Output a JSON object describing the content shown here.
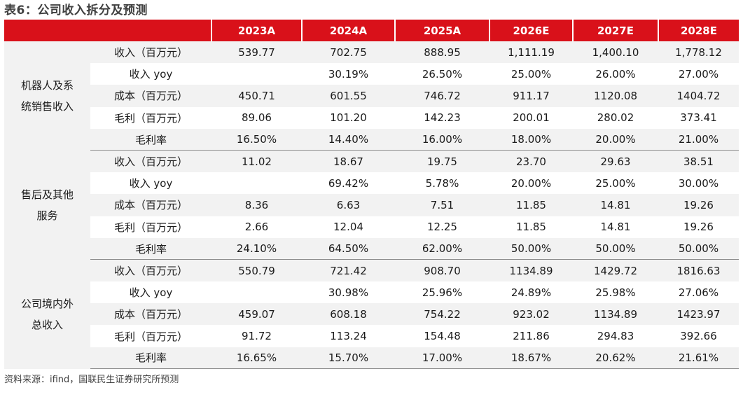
{
  "title": "表6：公司收入拆分及预测",
  "header": {
    "blank": "",
    "years": [
      "2023A",
      "2024A",
      "2025A",
      "2026E",
      "2027E",
      "2028E"
    ]
  },
  "groups": [
    {
      "name_lines": [
        "机器人及系",
        "统销售收入"
      ],
      "rows": [
        {
          "label": "收入（百万元）",
          "values": [
            "539.77",
            "702.75",
            "888.95",
            "1,111.19",
            "1,400.10",
            "1,778.12"
          ]
        },
        {
          "label": "收入 yoy",
          "values": [
            "",
            "30.19%",
            "26.50%",
            "25.00%",
            "26.00%",
            "27.00%"
          ]
        },
        {
          "label": "成本（百万元）",
          "values": [
            "450.71",
            "601.55",
            "746.72",
            "911.17",
            "1120.08",
            "1404.72"
          ]
        },
        {
          "label": "毛利（百万元）",
          "values": [
            "89.06",
            "101.20",
            "142.23",
            "200.01",
            "280.02",
            "373.41"
          ]
        },
        {
          "label": "毛利率",
          "values": [
            "16.50%",
            "14.40%",
            "16.00%",
            "18.00%",
            "20.00%",
            "21.00%"
          ]
        }
      ]
    },
    {
      "name_lines": [
        "售后及其他",
        "服务"
      ],
      "rows": [
        {
          "label": "收入（百万元）",
          "values": [
            "11.02",
            "18.67",
            "19.75",
            "23.70",
            "29.63",
            "38.51"
          ]
        },
        {
          "label": "收入 yoy",
          "values": [
            "",
            "69.42%",
            "5.78%",
            "20.00%",
            "25.00%",
            "30.00%"
          ]
        },
        {
          "label": "成本（百万元）",
          "values": [
            "8.36",
            "6.63",
            "7.51",
            "11.85",
            "14.81",
            "19.26"
          ]
        },
        {
          "label": "毛利（百万元）",
          "values": [
            "2.66",
            "12.04",
            "12.25",
            "11.85",
            "14.81",
            "19.26"
          ]
        },
        {
          "label": "毛利率",
          "values": [
            "24.10%",
            "64.50%",
            "62.00%",
            "50.00%",
            "50.00%",
            "50.00%"
          ]
        }
      ]
    },
    {
      "name_lines": [
        "公司境内外",
        "总收入"
      ],
      "rows": [
        {
          "label": "收入（百万元）",
          "values": [
            "550.79",
            "721.42",
            "908.70",
            "1134.89",
            "1429.72",
            "1816.63"
          ]
        },
        {
          "label": "收入 yoy",
          "values": [
            "",
            "30.98%",
            "25.96%",
            "24.89%",
            "25.98%",
            "27.06%"
          ]
        },
        {
          "label": "成本（百万元）",
          "values": [
            "459.07",
            "608.18",
            "754.22",
            "923.02",
            "1134.89",
            "1423.97"
          ]
        },
        {
          "label": "毛利（百万元）",
          "values": [
            "91.72",
            "113.24",
            "154.48",
            "211.86",
            "294.83",
            "392.66"
          ]
        },
        {
          "label": "毛利率",
          "values": [
            "16.65%",
            "15.70%",
            "17.00%",
            "18.67%",
            "20.62%",
            "21.61%"
          ]
        }
      ]
    }
  ],
  "source": "资料来源：ifind，国联民生证券研究所预测",
  "colors": {
    "header_bg": "#d9111a",
    "stripe": "#f2f2f2"
  }
}
